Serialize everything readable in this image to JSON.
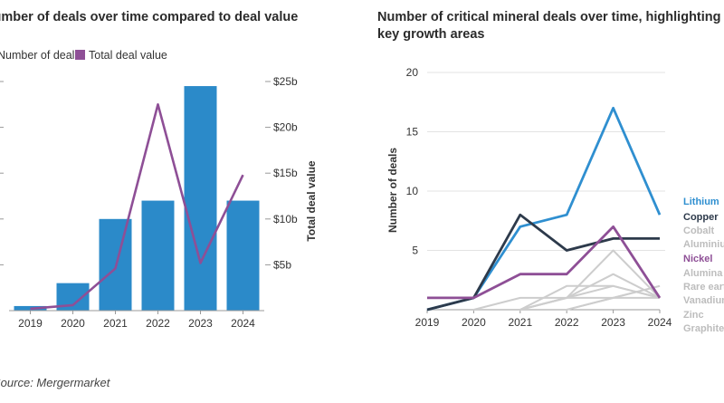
{
  "colors": {
    "bar": "#2b8ac9",
    "value_line": "#8e4f96",
    "lithium": "#2f8fd0",
    "copper": "#2d3a4b",
    "nickel": "#8e4f96",
    "muted": "#cdcdcd",
    "axis": "#999999",
    "grid": "#e3e3e3"
  },
  "left_legend": {
    "deals_label": "Number of deals",
    "value_label": "Total deal value"
  },
  "source": "Source: Mergermarket",
  "chart_data": [
    {
      "type": "bar",
      "title": "Number of deals over time compared to deal value",
      "categories": [
        "2019",
        "2020",
        "2021",
        "2022",
        "2023",
        "2024"
      ],
      "series": [
        {
          "name": "Number of deals",
          "axis": "left",
          "values": [
            1,
            6,
            20,
            24,
            49,
            24
          ]
        },
        {
          "name": "Total deal value",
          "type": "line",
          "axis": "right",
          "values": [
            0.2,
            0.6,
            4.6,
            22.5,
            5.2,
            14.8
          ]
        }
      ],
      "ylim": [
        0,
        50
      ],
      "y2lim": [
        0,
        25
      ],
      "y2ticks": [
        "$5b",
        "$10b",
        "$15b",
        "$20b",
        "$25b"
      ],
      "y2label": "Total deal value",
      "xlabel": ""
    },
    {
      "type": "line",
      "title": "Number of critical mineral deals over time, highlighting key growth areas",
      "x": [
        "2019",
        "2020",
        "2021",
        "2022",
        "2023",
        "2024"
      ],
      "ylim": [
        0,
        20
      ],
      "yticks": [
        5,
        10,
        15,
        20
      ],
      "ylabel": "Number of deals",
      "series": [
        {
          "name": "Lithium",
          "highlight": "lithium",
          "values": [
            0,
            1,
            7,
            8,
            17,
            8
          ]
        },
        {
          "name": "Copper",
          "highlight": "copper",
          "values": [
            0,
            1,
            8,
            5,
            6,
            6
          ]
        },
        {
          "name": "Cobalt",
          "highlight": "muted",
          "values": [
            0,
            0,
            0,
            1,
            5,
            1
          ]
        },
        {
          "name": "Aluminium",
          "highlight": "muted",
          "values": [
            0,
            0,
            0,
            1,
            3,
            1
          ]
        },
        {
          "name": "Nickel",
          "highlight": "nickel",
          "values": [
            1,
            1,
            3,
            3,
            7,
            1
          ]
        },
        {
          "name": "Alumina",
          "highlight": "muted",
          "values": [
            0,
            0,
            0,
            2,
            2,
            1
          ]
        },
        {
          "name": "Rare earths",
          "highlight": "muted",
          "values": [
            0,
            0,
            0,
            1,
            2,
            1
          ]
        },
        {
          "name": "Vanadium",
          "highlight": "muted",
          "values": [
            0,
            0,
            1,
            1,
            1,
            2
          ]
        },
        {
          "name": "Zinc",
          "highlight": "muted",
          "values": [
            0,
            0,
            0,
            0,
            1,
            1
          ]
        },
        {
          "name": "Graphite",
          "highlight": "muted",
          "values": [
            0,
            0,
            0,
            0,
            1,
            2
          ]
        }
      ]
    }
  ]
}
